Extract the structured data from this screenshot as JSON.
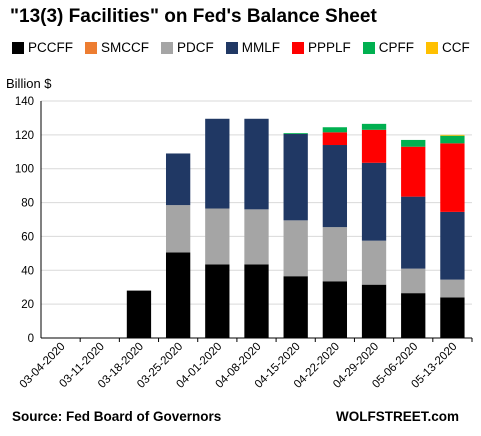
{
  "title": "\"13(3) Facilities\" on Fed's Balance Sheet",
  "source": "Source: Fed Board of Governors",
  "brand": "WOLFSTREET.com",
  "colors": {
    "PCCFF": "#000000",
    "SMCCF": "#ed7d31",
    "PDCF": "#a5a5a5",
    "MMLF": "#203864",
    "PPPLF": "#ff0000",
    "CPFF": "#00b050",
    "CCF": "#ffc000",
    "grid": "#d9d9d9",
    "axis": "#000000"
  },
  "chart_data": {
    "type": "bar",
    "stacked": true,
    "ylabel": "Billion $",
    "ylim": [
      0,
      140
    ],
    "yticks": [
      0,
      20,
      40,
      60,
      80,
      100,
      120,
      140
    ],
    "grid": true,
    "legend_position": "top",
    "categories": [
      "03-04-2020",
      "03-11-2020",
      "03-18-2020",
      "03-25-2020",
      "04-01-2020",
      "04-08-2020",
      "04-15-2020",
      "04-22-2020",
      "04-29-2020",
      "05-06-2020",
      "05-13-2020"
    ],
    "series": [
      {
        "name": "PCCFF",
        "values": [
          0,
          0,
          28,
          50.5,
          43.5,
          43.5,
          36.5,
          33.5,
          31.5,
          26.5,
          24
        ]
      },
      {
        "name": "SMCCF",
        "values": [
          0,
          0,
          0,
          0,
          0,
          0,
          0,
          0,
          0,
          0,
          0
        ]
      },
      {
        "name": "PDCF",
        "values": [
          0,
          0,
          0,
          28,
          33,
          32.5,
          33,
          32,
          26,
          14.5,
          10.5
        ]
      },
      {
        "name": "MMLF",
        "values": [
          0,
          0,
          0,
          30.5,
          53,
          53.5,
          51,
          48.5,
          46,
          42.5,
          40
        ]
      },
      {
        "name": "PPPLF",
        "values": [
          0,
          0,
          0,
          0,
          0,
          0,
          0,
          7.5,
          19.5,
          29.5,
          40.5
        ]
      },
      {
        "name": "CPFF",
        "values": [
          0,
          0,
          0,
          0,
          0,
          0,
          0.5,
          3,
          3.5,
          4,
          4.5
        ]
      },
      {
        "name": "CCF",
        "values": [
          0,
          0,
          0,
          0,
          0,
          0,
          0,
          0,
          0,
          0,
          0.5
        ]
      }
    ]
  }
}
